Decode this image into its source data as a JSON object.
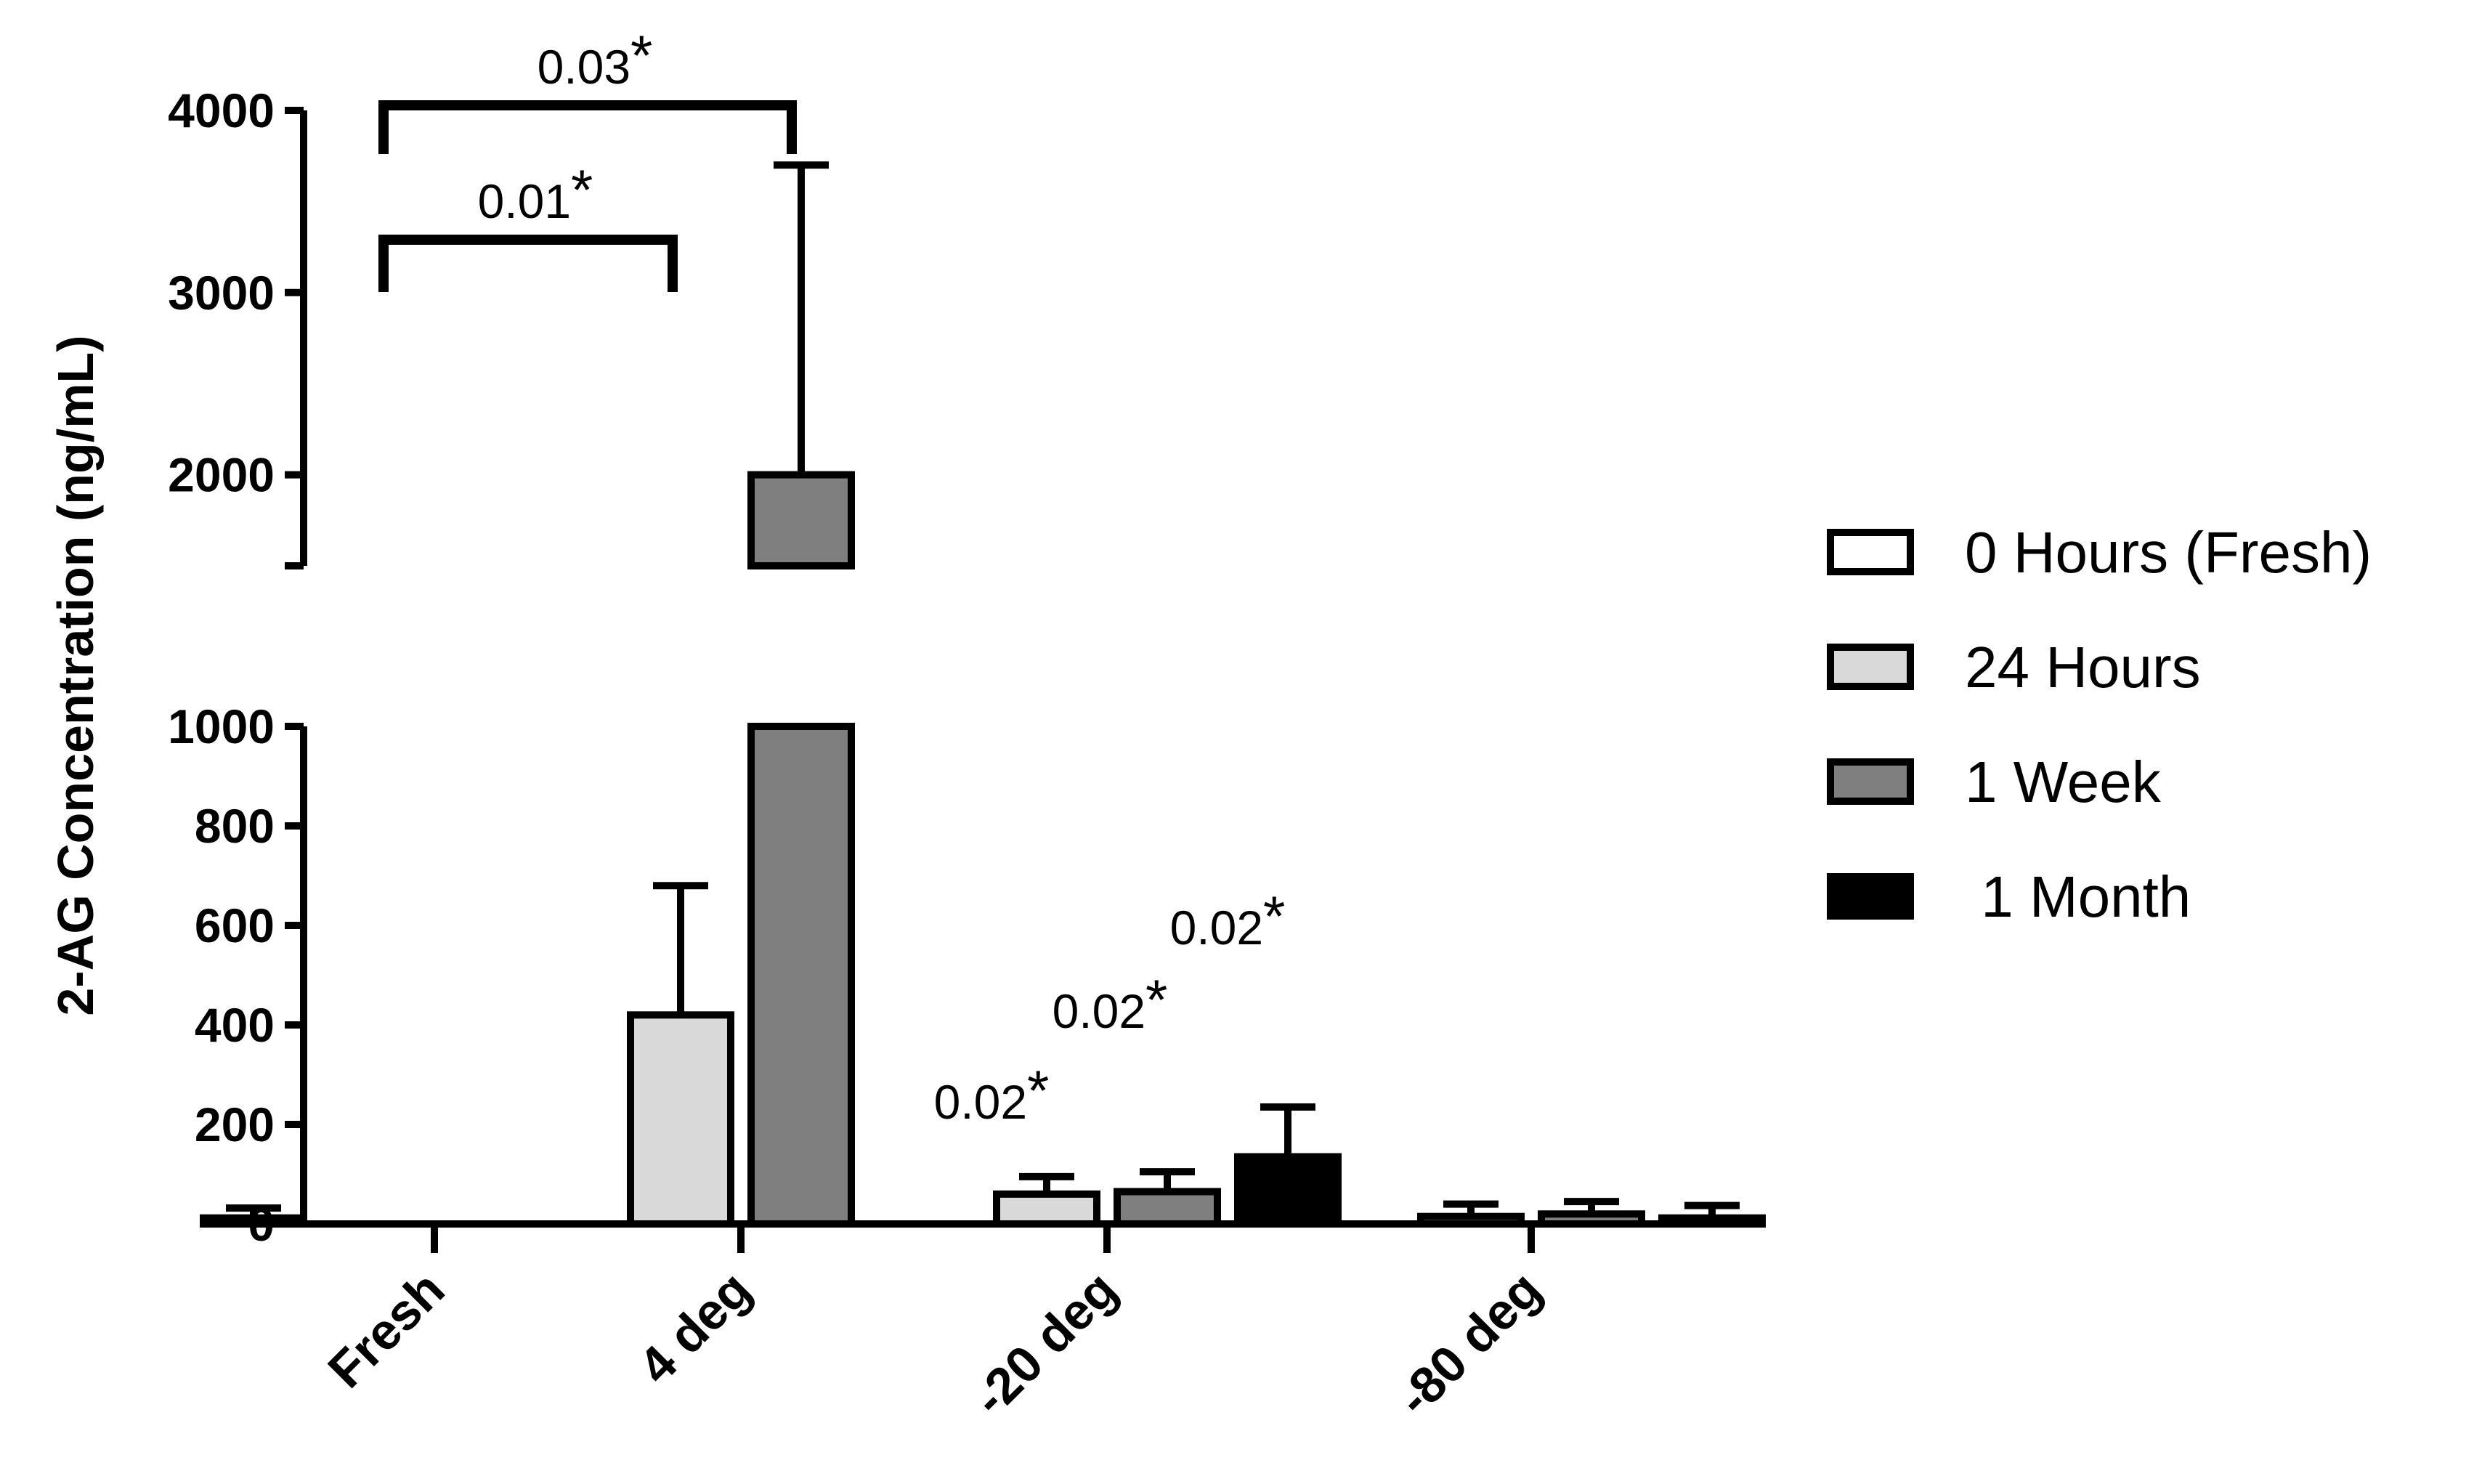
{
  "chart_data": {
    "type": "bar",
    "title": "",
    "ylabel": "2-AG Concentration (ng/mL)",
    "xlabel": "",
    "y_axis_break": true,
    "ylim_lower": [
      0,
      1000
    ],
    "ylim_upper": [
      1500,
      4000
    ],
    "lower_ticks": [
      "0",
      "200",
      "400",
      "600",
      "800",
      "1000"
    ],
    "upper_ticks": [
      "2000",
      "3000",
      "4000"
    ],
    "categories": [
      "Fresh",
      "4 deg",
      "-20 deg",
      "-80 deg"
    ],
    "series": [
      {
        "name": "0 Hours (Fresh)",
        "color": "#ffffff",
        "values": [
          12,
          null,
          null,
          null
        ],
        "errors": [
          20,
          null,
          null,
          null
        ]
      },
      {
        "name": "24 Hours",
        "color": "#d9d9d9",
        "values": [
          null,
          420,
          60,
          15
        ],
        "errors": [
          null,
          260,
          35,
          25
        ]
      },
      {
        "name": "1 Week",
        "color": "#7f7f7f",
        "values": [
          null,
          2000,
          65,
          20
        ],
        "errors": [
          null,
          1700,
          40,
          25
        ]
      },
      {
        "name": " 1 Month",
        "color": "#000000",
        "values": [
          null,
          null,
          135,
          12
        ],
        "errors": [
          null,
          null,
          100,
          25
        ]
      }
    ],
    "annotations": [
      {
        "text": "0.03",
        "star": "*",
        "from": "Fresh / 0 Hours (Fresh)",
        "to": "4 deg / 1 Week"
      },
      {
        "text": "0.01",
        "star": "*",
        "from": "Fresh / 0 Hours (Fresh)",
        "to": "4 deg / 24 Hours"
      },
      {
        "text": "0.02",
        "star": "*",
        "target": "-20 deg / 24 Hours"
      },
      {
        "text": "0.02",
        "star": "*",
        "target": "-20 deg / 1 Week"
      },
      {
        "text": "0.02",
        "star": "*",
        "target": "-20 deg /  1 Month"
      }
    ],
    "legend_position": "right"
  }
}
